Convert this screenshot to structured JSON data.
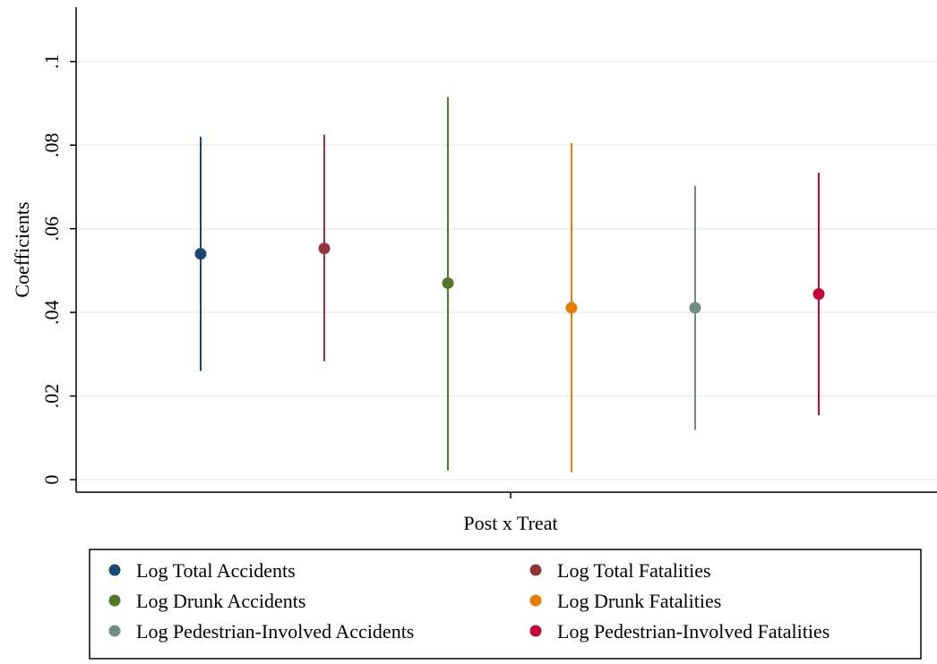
{
  "chart_data": {
    "type": "scatter",
    "subtype": "coefficient plot with confidence intervals",
    "ylabel": "Coefficients",
    "xlabel": "Post x Treat",
    "ylim": [
      -0.003,
      0.113
    ],
    "yticks": [
      0,
      0.02,
      0.04,
      0.06,
      0.08,
      0.1
    ],
    "ytick_labels": [
      "0",
      ".02",
      ".04",
      ".06",
      ".08",
      ".1"
    ],
    "grid": true,
    "legend_position": "bottom",
    "series": [
      {
        "name": "Log Total Accidents",
        "color": "#1a476f",
        "estimate": 0.054,
        "ci_low": 0.026,
        "ci_high": 0.082
      },
      {
        "name": "Log Total Fatalities",
        "color": "#90353b",
        "estimate": 0.0553,
        "ci_low": 0.0283,
        "ci_high": 0.0825
      },
      {
        "name": "Log Drunk Accidents",
        "color": "#55752f",
        "estimate": 0.047,
        "ci_low": 0.0022,
        "ci_high": 0.0915
      },
      {
        "name": "Log Drunk Fatalities",
        "color": "#e37e00",
        "estimate": 0.0411,
        "ci_low": 0.0017,
        "ci_high": 0.0805
      },
      {
        "name": "Log Pedestrian-Involved Accidents",
        "color": "#6e8e84",
        "estimate": 0.0411,
        "ci_low": 0.0119,
        "ci_high": 0.0703
      },
      {
        "name": "Log Pedestrian-Involved Fatalities",
        "color": "#c10534",
        "estimate": 0.0444,
        "ci_low": 0.0154,
        "ci_high": 0.0734
      }
    ]
  }
}
